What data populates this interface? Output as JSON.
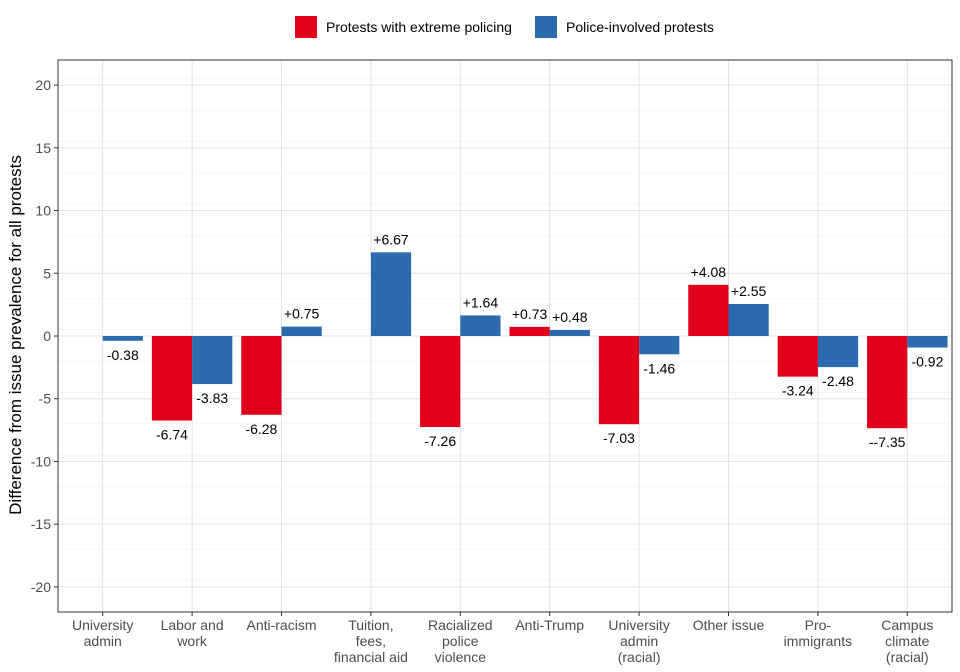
{
  "chart_data": {
    "type": "bar",
    "title": "",
    "xlabel": "",
    "ylabel": "Difference from issue prevalence for all protests",
    "ylim": [
      -22,
      22
    ],
    "yticks": [
      -20,
      -15,
      -10,
      -5,
      0,
      5,
      10,
      15,
      20
    ],
    "grid": true,
    "legend_position": "top",
    "categories": [
      [
        "University",
        "admin"
      ],
      [
        "Labor and",
        "work"
      ],
      [
        "Anti-racism"
      ],
      [
        "Tuition,",
        "fees,",
        "financial aid"
      ],
      [
        "Racialized",
        "police",
        "violence"
      ],
      [
        "Anti-Trump"
      ],
      [
        "University",
        "admin",
        "(racial)"
      ],
      [
        "Other issue"
      ],
      [
        "Pro-",
        "immigrants"
      ],
      [
        "Campus",
        "climate",
        "(racial)"
      ]
    ],
    "series": [
      {
        "name": "Protests with extreme policing",
        "color": "#e0001b",
        "values": [
          null,
          -6.74,
          -6.28,
          null,
          -7.26,
          0.73,
          -7.03,
          4.08,
          -3.24,
          -7.35
        ],
        "labels": [
          "",
          "-6.74",
          "-6.28",
          "",
          "-7.26",
          "+0.73",
          "-7.03",
          "+4.08",
          "-3.24",
          "--7.35"
        ]
      },
      {
        "name": "Police-involved protests",
        "color": "#2b6aad",
        "values": [
          -0.38,
          -3.83,
          0.75,
          6.67,
          1.64,
          0.48,
          -1.46,
          2.55,
          -2.48,
          -0.92
        ],
        "labels": [
          "-0.38",
          "-3.83",
          "+0.75",
          "+6.67",
          "+1.64",
          "+0.48",
          "-1.46",
          "+2.55",
          "-2.48",
          "-0.92"
        ]
      }
    ]
  }
}
